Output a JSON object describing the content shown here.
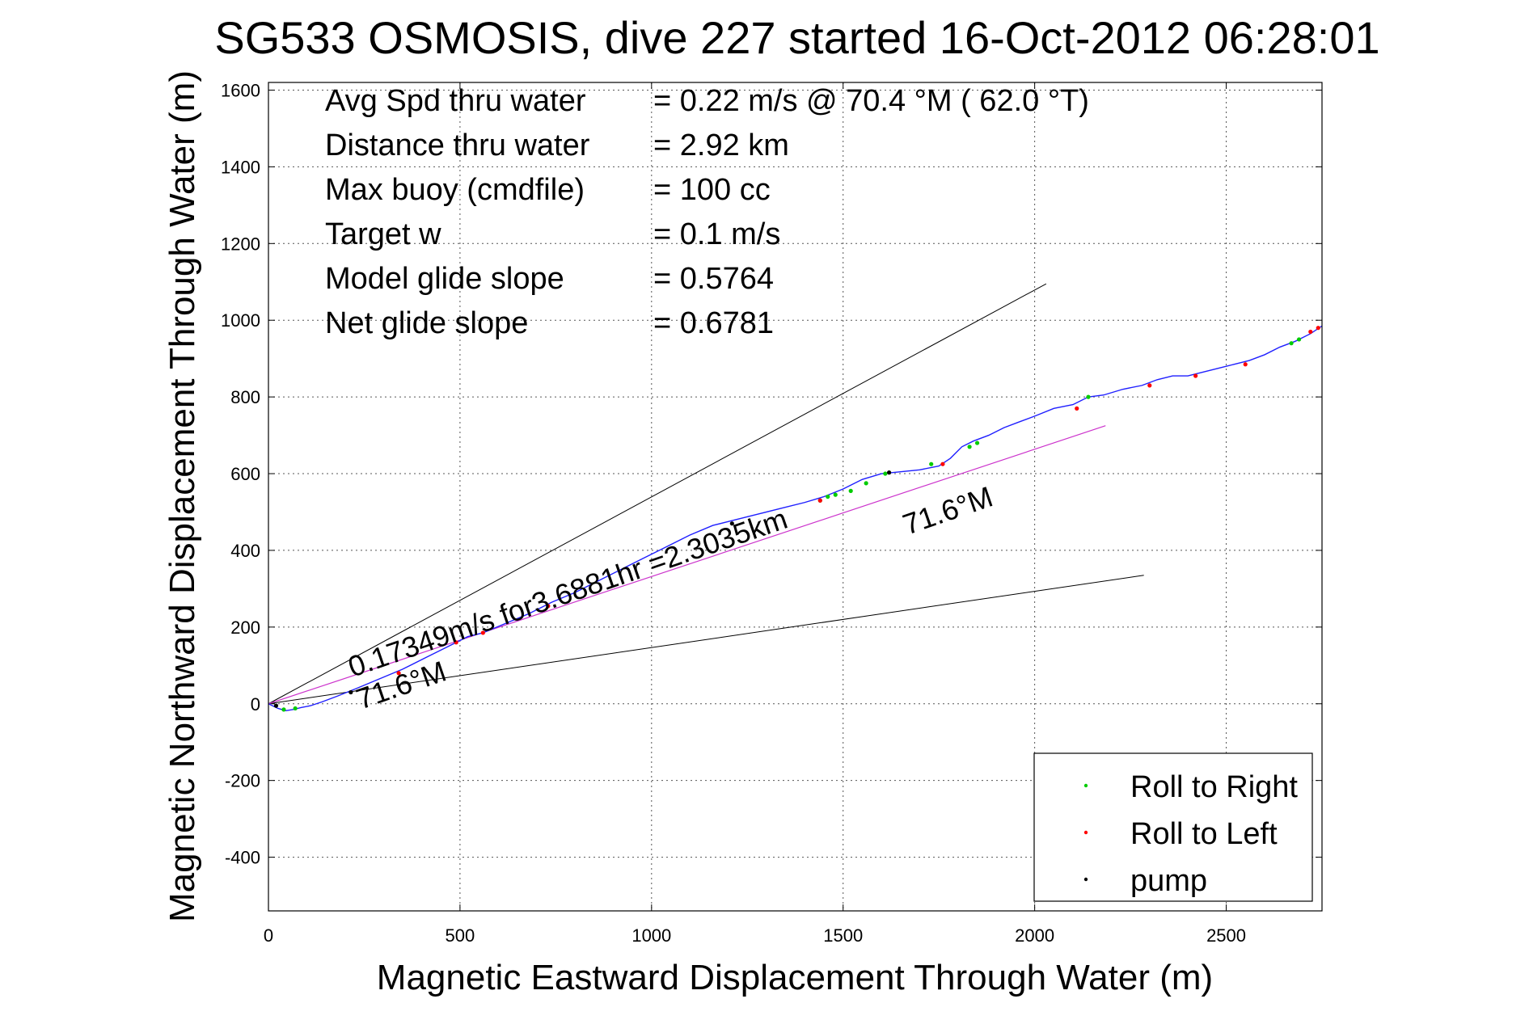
{
  "chart_data": {
    "type": "line",
    "title": "SG533 OSMOSIS, dive 227 started 16-Oct-2012 06:28:01",
    "xlabel": "Magnetic Eastward Displacement Through Water (m)",
    "ylabel": "Magnetic Northward Displacement Through Water (m)",
    "xlim": [
      0,
      2750
    ],
    "ylim": [
      -540,
      1620
    ],
    "xticks": [
      0,
      500,
      1000,
      1500,
      2000,
      2500
    ],
    "yticks": [
      -400,
      -200,
      0,
      200,
      400,
      600,
      800,
      1000,
      1200,
      1400,
      1600
    ],
    "grid": true,
    "legend_position": "bottom-right",
    "info_lines": [
      {
        "label": "Avg Spd thru water",
        "value": "=  0.22 m/s @  70.4 °M ( 62.0 °T)"
      },
      {
        "label": "Distance thru water",
        "value": "=  2.92 km"
      },
      {
        "label": "Max buoy (cmdfile)",
        "value": "= 100 cc"
      },
      {
        "label": "Target w",
        "value": "= 0.1 m/s"
      },
      {
        "label": "Model glide slope",
        "value": "= 0.5764"
      },
      {
        "label": "Net glide slope",
        "value": "= 0.6781"
      }
    ],
    "annotations": {
      "current": "0.17349m/s for3.6881hr =2.3035km",
      "heading_start": "71.6°M",
      "heading_end": "71.6°M"
    },
    "colors": {
      "track": "#1f1fff",
      "course": "#cc33cc",
      "envelope": "#000000",
      "roll_right": "#00cc00",
      "roll_left": "#ff0000",
      "pump": "#000000"
    },
    "envelope_lines": [
      {
        "x": [
          0,
          2030
        ],
        "y": [
          0,
          1095
        ]
      },
      {
        "x": [
          0,
          2285
        ],
        "y": [
          0,
          335
        ]
      }
    ],
    "course_line": {
      "x": [
        0,
        2185
      ],
      "y": [
        0,
        725
      ]
    },
    "track": {
      "x": [
        0,
        25,
        45,
        65,
        85,
        110,
        140,
        180,
        230,
        290,
        350,
        410,
        470,
        520,
        560,
        620,
        680,
        740,
        800,
        860,
        920,
        980,
        1040,
        1100,
        1160,
        1220,
        1280,
        1340,
        1400,
        1450,
        1500,
        1550,
        1600,
        1650,
        1700,
        1750,
        1780,
        1810,
        1840,
        1880,
        1920,
        1960,
        2000,
        2050,
        2100,
        2140,
        2180,
        2230,
        2280,
        2320,
        2360,
        2400,
        2440,
        2480,
        2520,
        2560,
        2600,
        2640,
        2680,
        2720,
        2750
      ],
      "y": [
        0,
        -12,
        -18,
        -15,
        -10,
        -5,
        5,
        20,
        40,
        65,
        90,
        120,
        150,
        175,
        185,
        210,
        235,
        265,
        290,
        320,
        350,
        380,
        410,
        440,
        465,
        480,
        495,
        510,
        525,
        540,
        560,
        585,
        600,
        605,
        610,
        620,
        640,
        670,
        685,
        700,
        720,
        735,
        750,
        770,
        780,
        800,
        805,
        820,
        830,
        845,
        855,
        855,
        865,
        875,
        885,
        895,
        910,
        930,
        945,
        965,
        985
      ]
    },
    "roll_right": {
      "x": [
        40,
        70,
        1440,
        1460,
        1480,
        1520,
        1560,
        1610,
        1730,
        1830,
        1850,
        2140,
        2670,
        2690
      ],
      "y": [
        -15,
        -12,
        530,
        540,
        545,
        555,
        575,
        600,
        625,
        670,
        680,
        800,
        940,
        950
      ]
    },
    "roll_left": {
      "x": [
        340,
        490,
        560,
        730,
        1440,
        1760,
        2110,
        2300,
        2420,
        2550,
        2720,
        2740
      ],
      "y": [
        80,
        160,
        185,
        255,
        530,
        625,
        770,
        830,
        855,
        885,
        970,
        980
      ]
    },
    "pump": {
      "x": [
        20,
        215,
        1210,
        1620
      ],
      "y": [
        -5,
        30,
        470,
        603
      ]
    },
    "legend": [
      {
        "label": "Roll to Right",
        "color": "#00cc00"
      },
      {
        "label": "Roll to Left",
        "color": "#ff0000"
      },
      {
        "label": "pump",
        "color": "#000000"
      }
    ]
  }
}
